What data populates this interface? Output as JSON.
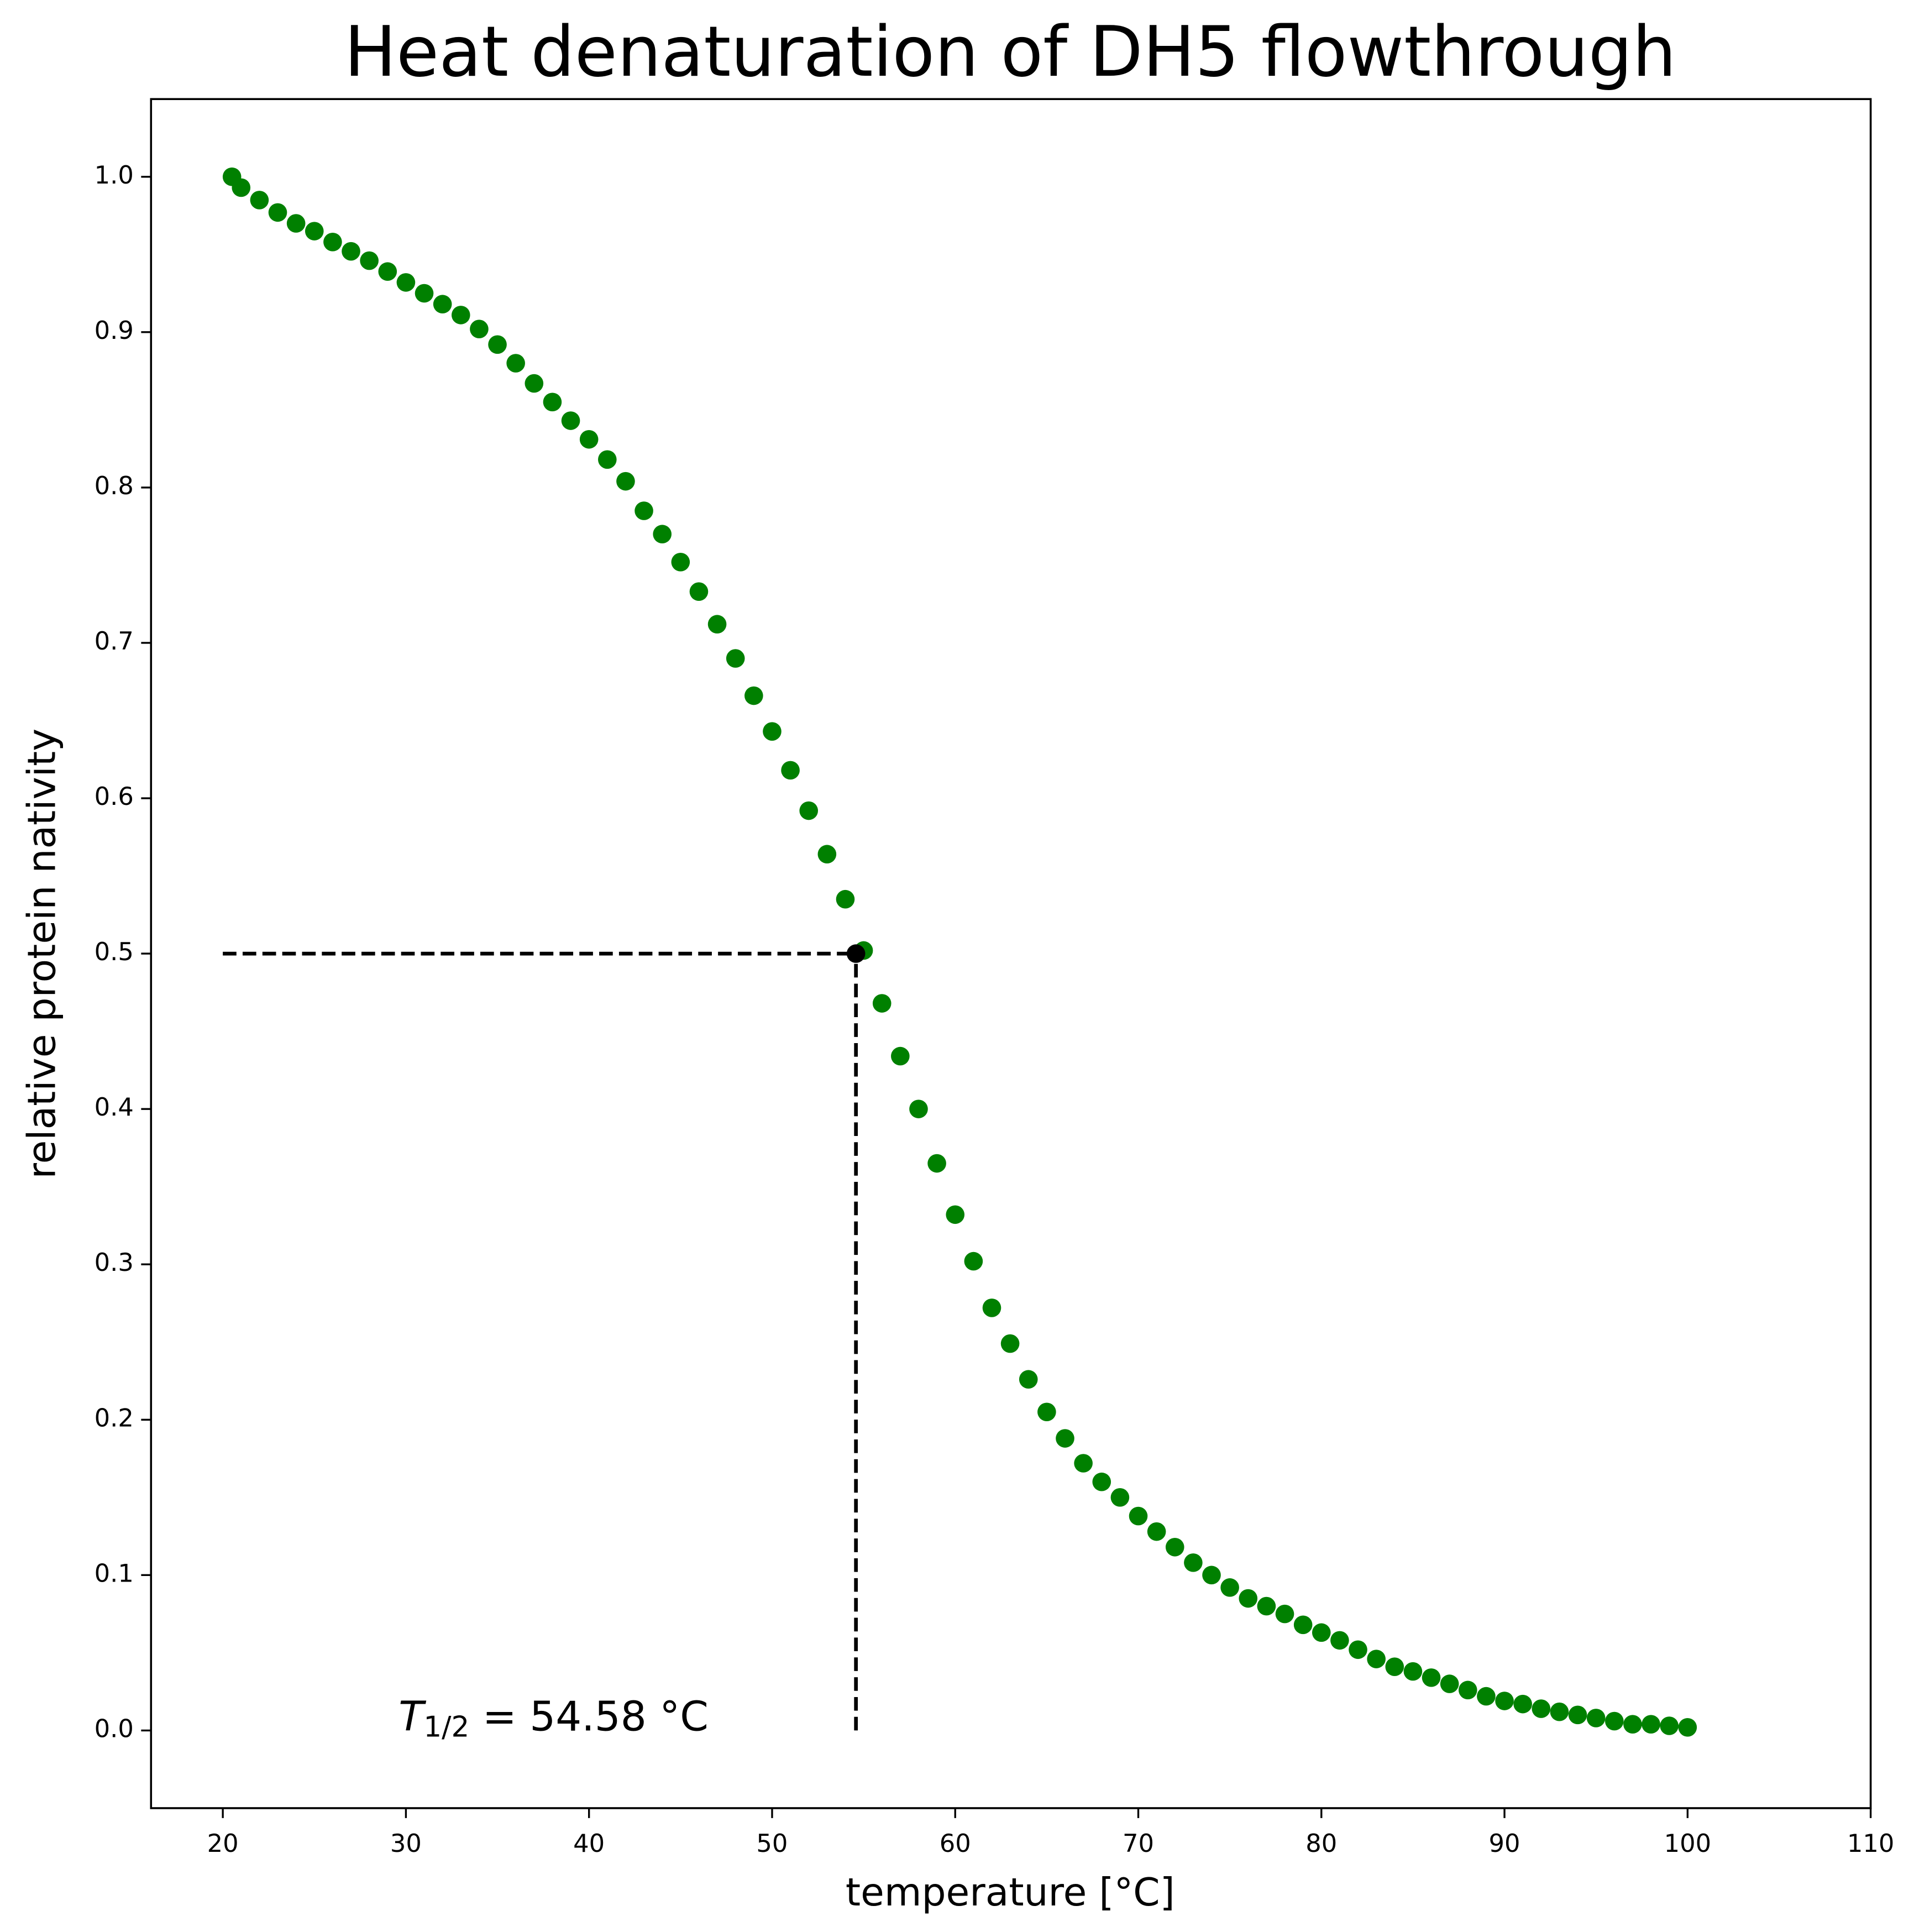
{
  "chart_data": {
    "type": "scatter",
    "title": "Heat denaturation of DH5 flowthrough",
    "x_label": "temperature [°C]",
    "y_label": "relative protein nativity",
    "xlim": [
      16.08,
      110
    ],
    "ylim": [
      -0.05,
      1.05
    ],
    "xticks": [
      20,
      30,
      40,
      50,
      60,
      70,
      80,
      90,
      100,
      110
    ],
    "yticks": [
      {
        "value": 0,
        "label": "0.0"
      },
      0.1,
      0.2,
      0.3,
      0.4,
      0.5,
      0.6,
      0.7,
      0.8,
      0.9,
      {
        "value": 1,
        "label": "1.0"
      }
    ],
    "series": [
      {
        "color": "#008000",
        "x": [
          20.5,
          21,
          22,
          23,
          24,
          25,
          26,
          27,
          28,
          29,
          30,
          31,
          32,
          33,
          34,
          35,
          36,
          37,
          38,
          39,
          40,
          41,
          42,
          43,
          44,
          45,
          46,
          47,
          48,
          49,
          50,
          51,
          52,
          53,
          54,
          55,
          56,
          57,
          58,
          59,
          60,
          61,
          62,
          63,
          64,
          65,
          66,
          67,
          68,
          69,
          70,
          71,
          72,
          73,
          74,
          75,
          76,
          77,
          78,
          79,
          80,
          81,
          82,
          83,
          84,
          85,
          86,
          87,
          88,
          89,
          90,
          91,
          92,
          93,
          94,
          95,
          96,
          97,
          98,
          99,
          100
        ],
        "values": [
          1.0,
          0.993,
          0.985,
          0.977,
          0.97,
          0.965,
          0.958,
          0.952,
          0.946,
          0.939,
          0.932,
          0.925,
          0.918,
          0.911,
          0.902,
          0.892,
          0.88,
          0.867,
          0.855,
          0.843,
          0.831,
          0.818,
          0.804,
          0.785,
          0.77,
          0.752,
          0.733,
          0.712,
          0.69,
          0.666,
          0.643,
          0.618,
          0.592,
          0.564,
          0.535,
          0.502,
          0.468,
          0.434,
          0.4,
          0.365,
          0.332,
          0.302,
          0.272,
          0.249,
          0.226,
          0.205,
          0.188,
          0.172,
          0.16,
          0.15,
          0.138,
          0.128,
          0.118,
          0.108,
          0.1,
          0.092,
          0.085,
          0.08,
          0.075,
          0.068,
          0.063,
          0.058,
          0.052,
          0.046,
          0.041,
          0.038,
          0.034,
          0.03,
          0.026,
          0.022,
          0.019,
          0.017,
          0.014,
          0.012,
          0.01,
          0.008,
          0.006,
          0.004,
          0.004,
          0.003,
          0.002
        ]
      }
    ],
    "half_point": {
      "x": 54.58,
      "y": 0.5,
      "color": "#000000"
    },
    "guide_lines": {
      "x_from": 20,
      "y_from": 0
    },
    "annotation": {
      "symbol": "T",
      "subscript": "1/2",
      "text": " = 54.58 °C"
    }
  }
}
